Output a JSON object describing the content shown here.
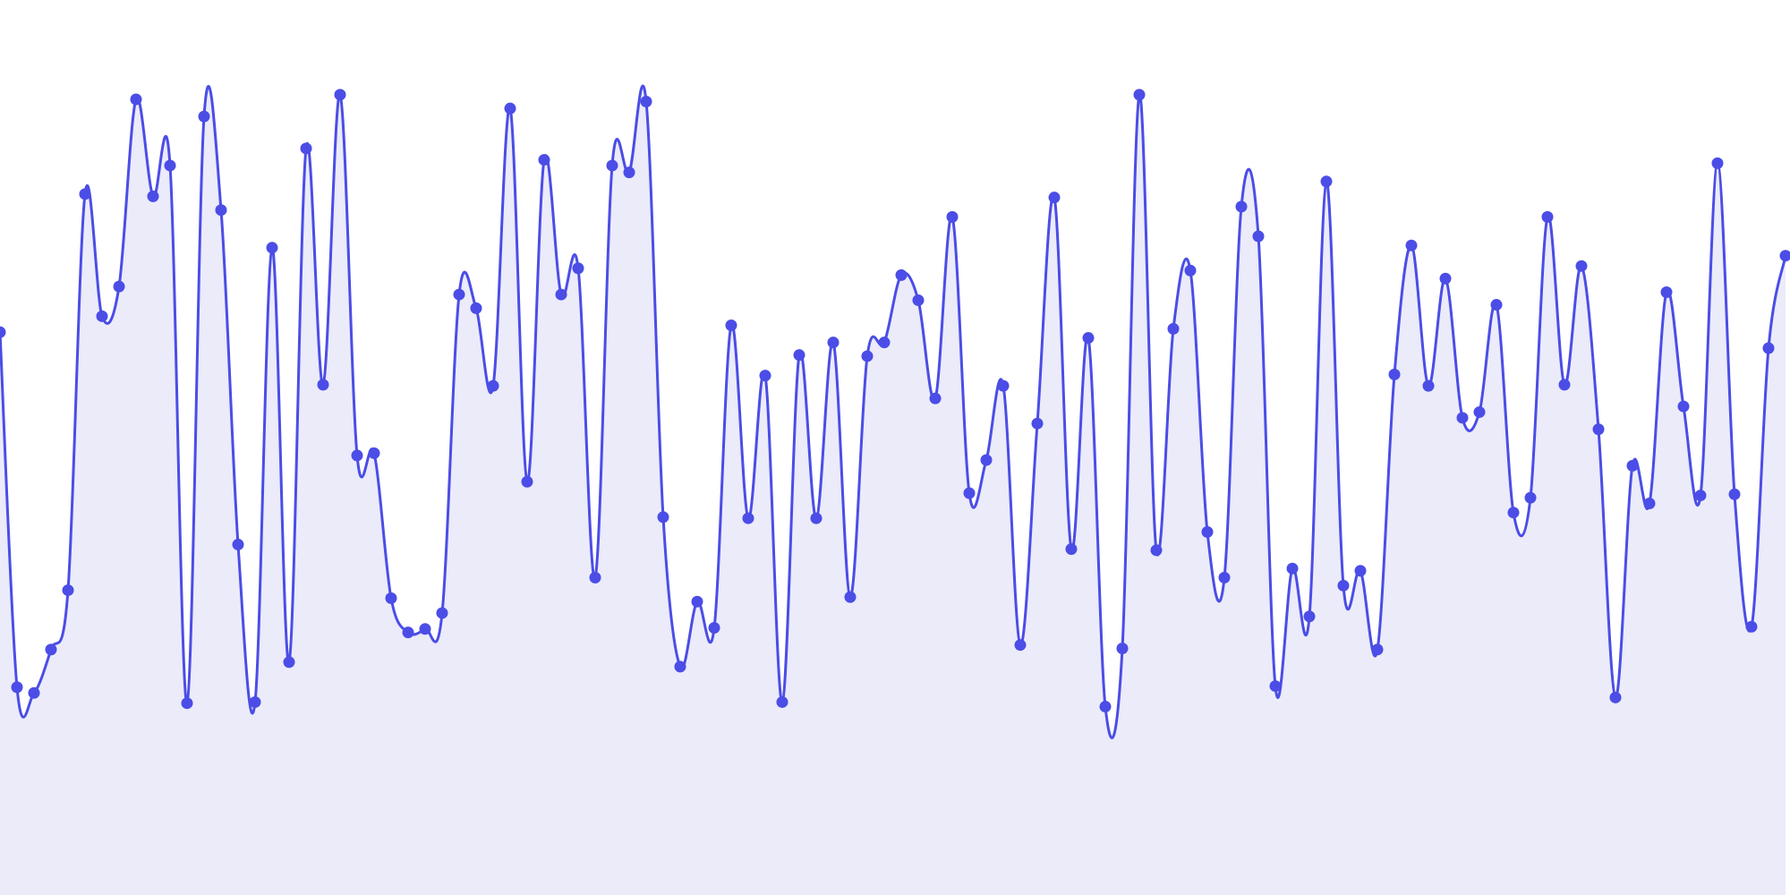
{
  "chart_data": {
    "type": "area",
    "values": [
      493,
      182,
      177,
      215,
      267,
      614,
      507,
      533,
      697,
      612,
      639,
      168,
      682,
      600,
      307,
      169,
      567,
      204,
      654,
      447,
      701,
      385,
      387,
      260,
      230,
      233,
      247,
      526,
      514,
      446,
      689,
      362,
      644,
      526,
      549,
      278,
      639,
      633,
      695,
      331,
      200,
      257,
      234,
      499,
      330,
      455,
      169,
      473,
      330,
      484,
      261,
      472,
      484,
      543,
      521,
      435,
      594,
      352,
      381,
      446,
      219,
      413,
      611,
      303,
      488,
      165,
      216,
      701,
      302,
      496,
      547,
      318,
      278,
      603,
      577,
      183,
      286,
      244,
      625,
      271,
      284,
      215,
      456,
      569,
      446,
      540,
      418,
      423,
      517,
      335,
      348,
      594,
      447,
      551,
      408,
      173,
      376,
      343,
      528,
      428,
      350,
      641,
      351,
      235,
      479,
      560
    ],
    "ylim": [
      0,
      784
    ],
    "color": "#4b4de6",
    "fill": "#ebebfa"
  }
}
